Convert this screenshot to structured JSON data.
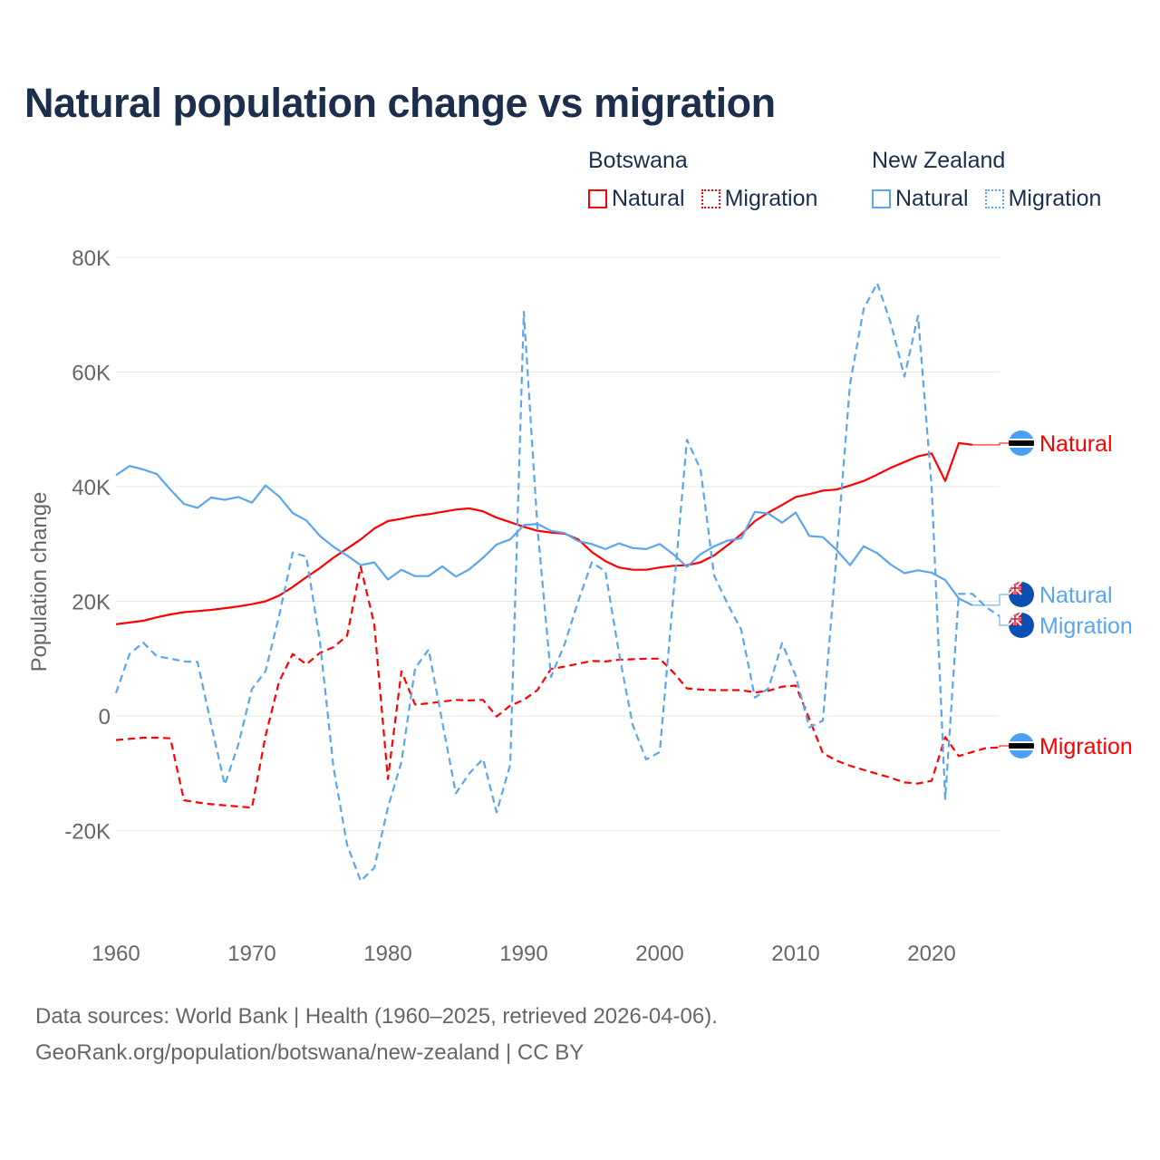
{
  "chart_data": {
    "type": "line",
    "title": "Natural population change vs migration",
    "xlabel": "",
    "ylabel": "Population change",
    "xlim": [
      1960,
      2025
    ],
    "ylim": [
      -30000,
      80000
    ],
    "x_ticks": [
      1960,
      1970,
      1980,
      1990,
      2000,
      2010,
      2020
    ],
    "x_tick_labels": [
      "1960",
      "1970",
      "1980",
      "1990",
      "2000",
      "2010",
      "2020"
    ],
    "y_ticks": [
      -20000,
      0,
      20000,
      40000,
      60000,
      80000
    ],
    "y_tick_labels": [
      "-20K",
      "0",
      "20K",
      "40K",
      "60K",
      "80K"
    ],
    "grid": true,
    "legend_placement": "top-right",
    "legend": {
      "groups": [
        {
          "country": "Botswana",
          "items": [
            "Natural",
            "Migration"
          ]
        },
        {
          "country": "New Zealand",
          "items": [
            "Natural",
            "Migration"
          ]
        }
      ]
    },
    "series": [
      {
        "name": "Botswana Natural",
        "country": "Botswana",
        "kind": "Natural",
        "color": "#ff0000",
        "dash": false,
        "start_year": 1960,
        "values": [
          16000,
          16300,
          16600,
          17200,
          17700,
          18100,
          18300,
          18500,
          18800,
          19100,
          19500,
          20000,
          21000,
          22500,
          24200,
          25800,
          27600,
          29200,
          30800,
          32700,
          34000,
          34400,
          34900,
          35200,
          35600,
          36000,
          36200,
          35700,
          34600,
          33800,
          33000,
          32300,
          32000,
          31800,
          30800,
          28600,
          27000,
          25900,
          25500,
          25500,
          25900,
          26200,
          26300,
          26800,
          28000,
          29800,
          31700,
          34000,
          35500,
          36800,
          38200,
          38700,
          39300,
          39500,
          40200,
          41000,
          42100,
          43300,
          44300,
          45300,
          45800,
          41000,
          47600,
          47300
        ],
        "end_label": "Natural"
      },
      {
        "name": "Botswana Migration",
        "country": "Botswana",
        "kind": "Migration",
        "color": "#ff0000",
        "dash": true,
        "start_year": 1960,
        "values": [
          -4200,
          -4000,
          -3800,
          -3800,
          -3900,
          -14700,
          -15100,
          -15400,
          -15600,
          -15800,
          -16000,
          -3500,
          6000,
          10800,
          9000,
          11000,
          12000,
          14000,
          26000,
          16000,
          -11000,
          7800,
          2000,
          2200,
          2500,
          2800,
          2700,
          2800,
          -100,
          1800,
          2800,
          4500,
          8200,
          8600,
          9100,
          9600,
          9500,
          9800,
          9900,
          10000,
          10000,
          7600,
          4800,
          4600,
          4500,
          4500,
          4500,
          4100,
          4400,
          5100,
          5300,
          -500,
          -6500,
          -7800,
          -8700,
          -9400,
          -10100,
          -10800,
          -11600,
          -11800,
          -11300,
          -3700,
          -7000,
          -6300,
          -5600,
          -5500
        ],
        "end_label": "Migration"
      },
      {
        "name": "New Zealand Natural",
        "country": "New Zealand",
        "kind": "Natural",
        "color": "#5aa5ec",
        "dash": false,
        "start_year": 1960,
        "values": [
          42000,
          43600,
          43000,
          42200,
          39500,
          37000,
          36300,
          38100,
          37700,
          38200,
          37200,
          40200,
          38300,
          35400,
          34100,
          31400,
          29500,
          28000,
          26300,
          26800,
          23800,
          25500,
          24400,
          24400,
          26100,
          24300,
          25600,
          27600,
          29900,
          30800,
          33300,
          33500,
          32300,
          31900,
          30500,
          30000,
          29100,
          30100,
          29300,
          29100,
          30000,
          28200,
          26000,
          28200,
          29600,
          30600,
          31000,
          35600,
          35300,
          33700,
          35500,
          31400,
          31200,
          29000,
          26300,
          29600,
          28400,
          26400,
          24900,
          25400,
          25000,
          23700,
          20500,
          19300
        ],
        "end_label": "Natural"
      },
      {
        "name": "New Zealand Migration",
        "country": "New Zealand",
        "kind": "Migration",
        "color": "#5aa5ec",
        "dash": true,
        "start_year": 1960,
        "values": [
          4000,
          10800,
          12800,
          10400,
          10000,
          9500,
          9400,
          -1500,
          -12000,
          -5000,
          4700,
          7800,
          17500,
          28500,
          27800,
          13000,
          -9000,
          -22500,
          -28800,
          -26500,
          -16000,
          -8000,
          8300,
          11600,
          -1000,
          -13500,
          -10000,
          -7500,
          -16800,
          -8500,
          70500,
          33000,
          6800,
          12500,
          20000,
          26800,
          25200,
          11000,
          -1500,
          -7600,
          -6300,
          21000,
          48200,
          43000,
          24500,
          19500,
          15000,
          3200,
          4800,
          12700,
          7000,
          -2000,
          -800,
          28000,
          58000,
          71000,
          75500,
          68500,
          59200,
          69800,
          40000,
          -14500,
          21300,
          21300,
          19000,
          17400
        ],
        "end_label": "Migration"
      }
    ]
  },
  "footer": {
    "source_line": "Data sources: World Bank | Health (1960–2025, retrieved 2026-04-06).",
    "url_line": "GeoRank.org/population/botswana/new-zealand | CC BY"
  }
}
